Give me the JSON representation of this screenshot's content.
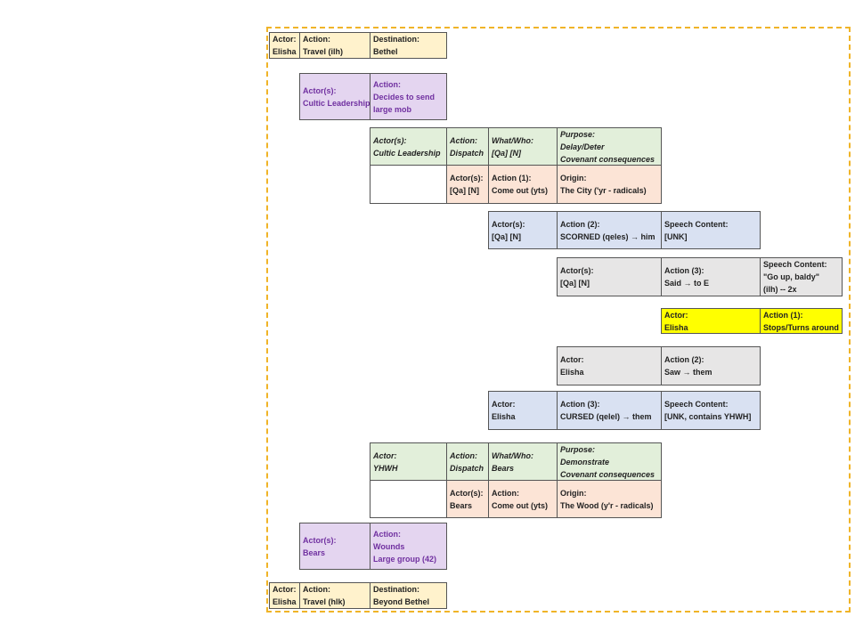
{
  "rows": [
    {
      "cells": [
        {
          "lines": [
            "Actor:",
            "Elisha"
          ]
        },
        {
          "lines": [
            "Action:",
            "Travel (ilh)"
          ]
        },
        {
          "lines": [
            "Destination:",
            "Bethel"
          ]
        }
      ]
    },
    {
      "cells": [
        {
          "lines": [
            "Actor(s):",
            "Cultic Leadership"
          ]
        },
        {
          "lines": [
            "Action:",
            "Decides to send",
            "large mob"
          ]
        }
      ]
    },
    {
      "cells": [
        {
          "lines": [
            "Actor(s):",
            "Cultic Leadership"
          ]
        },
        {
          "lines": [
            "Action:",
            "Dispatch"
          ]
        },
        {
          "lines": [
            "What/Who:",
            "[Qa] [N]"
          ]
        },
        {
          "lines": [
            "Purpose:",
            "Delay/Deter",
            "Covenant consequences"
          ]
        }
      ]
    },
    {
      "cells": [
        {
          "lines": [
            "Actor(s):",
            "[Qa] [N]"
          ]
        },
        {
          "lines": [
            "Action (1):",
            "Come out (yts)"
          ]
        },
        {
          "lines": [
            "Origin:",
            "The City ('yr - radicals)"
          ]
        }
      ]
    },
    {
      "cells": [
        {
          "lines": [
            "Actor(s):",
            "[Qa] [N]"
          ]
        },
        {
          "lines": [
            "Action (2):",
            "SCORNED (qeles) → him"
          ]
        },
        {
          "lines": [
            "Speech Content:",
            "[UNK]"
          ]
        }
      ]
    },
    {
      "cells": [
        {
          "lines": [
            "Actor(s):",
            "[Qa] [N]"
          ]
        },
        {
          "lines": [
            "Action (3):",
            "Said → to E"
          ]
        },
        {
          "lines": [
            "Speech Content:",
            "\"Go up, baldy\"",
            "(ilh) -- 2x"
          ]
        }
      ]
    },
    {
      "cells": [
        {
          "lines": [
            "Actor:",
            "Elisha"
          ]
        },
        {
          "lines": [
            "Action (1):",
            "Stops/Turns around"
          ]
        }
      ]
    },
    {
      "cells": [
        {
          "lines": [
            "Actor:",
            "Elisha"
          ]
        },
        {
          "lines": [
            "Action (2):",
            "Saw → them"
          ]
        }
      ]
    },
    {
      "cells": [
        {
          "lines": [
            "Actor:",
            "Elisha"
          ]
        },
        {
          "lines": [
            "Action (3):",
            "CURSED (qelel) → them"
          ]
        },
        {
          "lines": [
            "Speech Content:",
            "[UNK, contains YHWH]"
          ]
        }
      ]
    },
    {
      "cells": [
        {
          "lines": [
            "Actor:",
            "YHWH"
          ]
        },
        {
          "lines": [
            "Action:",
            "Dispatch"
          ]
        },
        {
          "lines": [
            "What/Who:",
            "Bears"
          ]
        },
        {
          "lines": [
            "Purpose:",
            "Demonstrate",
            "Covenant consequences"
          ]
        }
      ]
    },
    {
      "cells": [
        {
          "lines": [
            "Actor(s):",
            "Bears"
          ]
        },
        {
          "lines": [
            "Action:",
            "Come out (yts)"
          ]
        },
        {
          "lines": [
            "Origin:",
            "The Wood (y'r - radicals)"
          ]
        }
      ]
    },
    {
      "cells": [
        {
          "lines": [
            "Actor(s):",
            "Bears"
          ]
        },
        {
          "lines": [
            "Action:",
            "Wounds",
            "Large group (42)"
          ]
        }
      ]
    },
    {
      "cells": [
        {
          "lines": [
            "Actor:",
            "Elisha"
          ]
        },
        {
          "lines": [
            "Action:",
            "Travel (hlk)"
          ]
        },
        {
          "lines": [
            "Destination:",
            "Beyond Bethel"
          ]
        }
      ]
    }
  ]
}
